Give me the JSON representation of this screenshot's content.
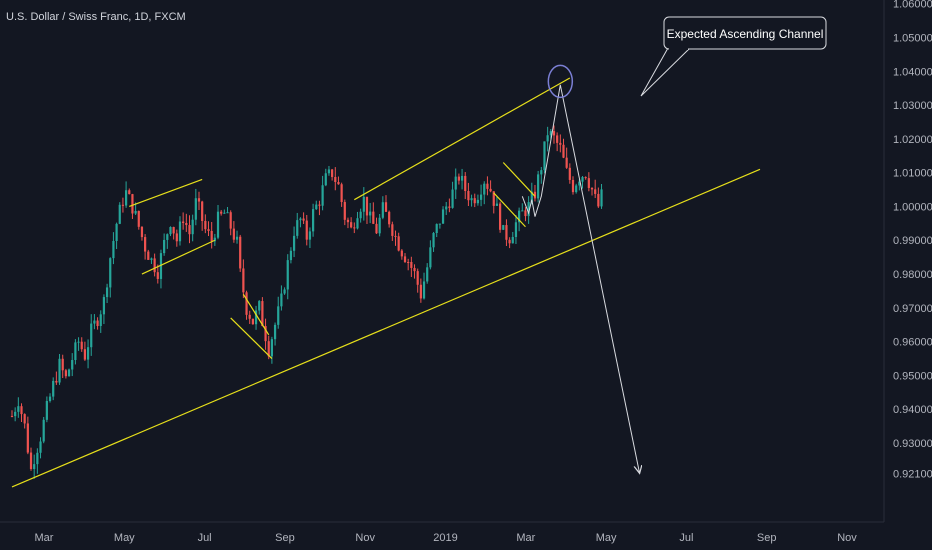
{
  "chart_data": {
    "type": "candlestick",
    "title": "U.S. Dollar / Swiss Franc, 1D, FXCM",
    "x_tick_labels": [
      "Mar",
      "May",
      "Jul",
      "Sep",
      "Nov",
      "2019",
      "Mar",
      "May",
      "Jul",
      "Sep",
      "Nov"
    ],
    "y_tick_labels": [
      "1.06000",
      "1.05000",
      "1.04000",
      "1.03000",
      "1.02000",
      "1.01000",
      "1.00000",
      "0.99000",
      "0.98000",
      "0.97000",
      "0.96000",
      "0.95000",
      "0.94000",
      "0.93000",
      "0.92100"
    ],
    "ylim": [
      0.9155,
      1.0605
    ],
    "series_path": [
      [
        0,
        0.938
      ],
      [
        2,
        0.943
      ],
      [
        4,
        0.935
      ],
      [
        6,
        0.922
      ],
      [
        7,
        0.926
      ],
      [
        9,
        0.932
      ],
      [
        11,
        0.94
      ],
      [
        13,
        0.947
      ],
      [
        15,
        0.953
      ],
      [
        17,
        0.949
      ],
      [
        19,
        0.955
      ],
      [
        21,
        0.96
      ],
      [
        23,
        0.956
      ],
      [
        25,
        0.963
      ],
      [
        27,
        0.967
      ],
      [
        29,
        0.972
      ],
      [
        31,
        0.985
      ],
      [
        33,
        0.995
      ],
      [
        35,
        1.002
      ],
      [
        36,
        1.004
      ],
      [
        38,
        1.0
      ],
      [
        40,
        0.994
      ],
      [
        42,
        0.988
      ],
      [
        44,
        0.984
      ],
      [
        46,
        0.981
      ],
      [
        48,
        0.989
      ],
      [
        50,
        0.996
      ],
      [
        52,
        0.99
      ],
      [
        54,
        0.997
      ],
      [
        56,
        0.992
      ],
      [
        58,
        1.001
      ],
      [
        59,
        0.999
      ],
      [
        61,
        0.993
      ],
      [
        63,
        0.99
      ],
      [
        65,
        0.996
      ],
      [
        67,
        0.998
      ],
      [
        69,
        0.994
      ],
      [
        71,
        0.989
      ],
      [
        72,
        0.98
      ],
      [
        74,
        0.97
      ],
      [
        76,
        0.966
      ],
      [
        78,
        0.97
      ],
      [
        80,
        0.962
      ],
      [
        81,
        0.958
      ],
      [
        83,
        0.965
      ],
      [
        85,
        0.972
      ],
      [
        87,
        0.983
      ],
      [
        89,
        0.993
      ],
      [
        91,
        0.996
      ],
      [
        93,
        0.991
      ],
      [
        95,
        0.998
      ],
      [
        97,
        1.002
      ],
      [
        99,
        1.008
      ],
      [
        101,
        1.01
      ],
      [
        103,
        1.006
      ],
      [
        105,
        0.997
      ],
      [
        107,
        0.993
      ],
      [
        109,
        0.999
      ],
      [
        111,
        1.002
      ],
      [
        113,
        0.996
      ],
      [
        115,
        0.993
      ],
      [
        117,
        0.999
      ],
      [
        119,
        0.996
      ],
      [
        121,
        0.991
      ],
      [
        123,
        0.987
      ],
      [
        125,
        0.984
      ],
      [
        127,
        0.98
      ],
      [
        129,
        0.974
      ],
      [
        131,
        0.982
      ],
      [
        133,
        0.991
      ],
      [
        135,
        0.996
      ],
      [
        137,
        1.0
      ],
      [
        139,
        1.004
      ],
      [
        141,
        1.009
      ],
      [
        143,
        1.005
      ],
      [
        145,
        1.002
      ],
      [
        147,
        1.004
      ],
      [
        149,
        1.008
      ],
      [
        151,
        1.005
      ],
      [
        153,
        0.999
      ],
      [
        155,
        0.992
      ],
      [
        157,
        0.991
      ],
      [
        159,
        0.995
      ],
      [
        161,
        0.998
      ],
      [
        163,
        1.0
      ],
      [
        165,
        1.004
      ],
      [
        167,
        1.012
      ],
      [
        169,
        1.022
      ],
      [
        171,
        1.02
      ],
      [
        173,
        1.017
      ],
      [
        175,
        1.01
      ],
      [
        177,
        1.006
      ],
      [
        179,
        1.009
      ],
      [
        181,
        1.01
      ],
      [
        183,
        1.005
      ],
      [
        184,
        1.002
      ],
      [
        185,
        1.0
      ],
      [
        186,
        1.003
      ]
    ],
    "index_range": [
      0,
      236
    ],
    "color_up": "#26a69a",
    "color_down": "#ef5350",
    "channel_lines": [
      [
        [
          0,
          0.917
        ],
        [
          236,
          1.011
        ]
      ],
      [
        [
          108,
          1.002
        ],
        [
          176,
          1.038
        ]
      ],
      [
        [
          37,
          1.0
        ],
        [
          60,
          1.008
        ]
      ],
      [
        [
          41,
          0.98
        ],
        [
          64,
          0.99
        ]
      ],
      [
        [
          69,
          0.967
        ],
        [
          82,
          0.955
        ]
      ],
      [
        [
          73,
          0.974
        ],
        [
          81,
          0.962
        ]
      ],
      [
        [
          155,
          1.013
        ],
        [
          165,
          1.003
        ]
      ],
      [
        [
          152,
          1.004
        ],
        [
          162,
          0.994
        ]
      ]
    ],
    "projection_path": [
      [
        161,
        1.003
      ],
      [
        163,
        0.998
      ],
      [
        164,
        1.002
      ],
      [
        165,
        0.997
      ],
      [
        167,
        1.003
      ],
      [
        173,
        1.036
      ],
      [
        198,
        0.921
      ]
    ],
    "target_circle": [
      173,
      1.037
    ],
    "annotation": "Expected Ascending Channel",
    "colors": {
      "background": "#131722",
      "channel_line": "#e6df1b",
      "projection": "#d9dbe0",
      "circle": "#7b7fd4",
      "axis_text": "#b2b5be"
    }
  }
}
